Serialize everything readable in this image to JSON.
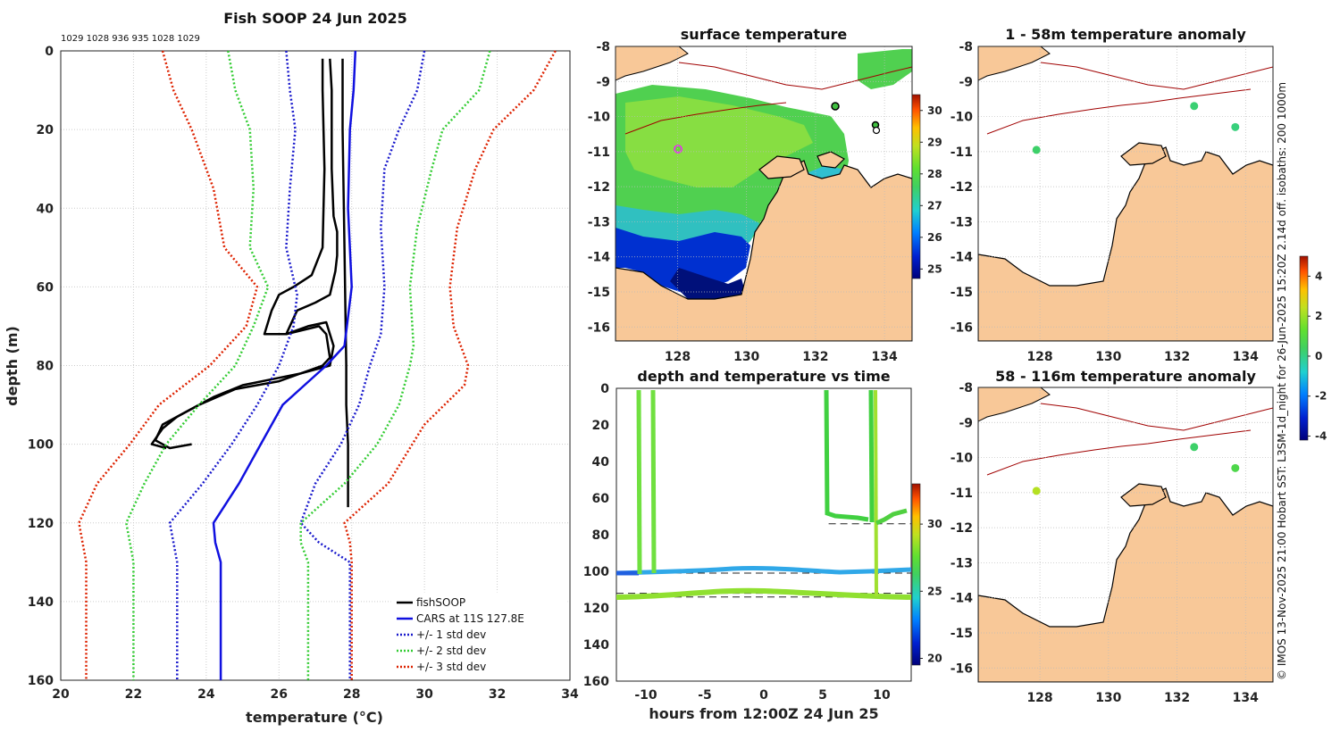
{
  "chart_data": [
    {
      "type": "line",
      "title": "Fish SOOP 24 Jun 2025",
      "subtitle": "1029 1028 936 935 1028 1029",
      "xlabel": "temperature (°C)",
      "ylabel": "depth (m)",
      "xlim": [
        20,
        34
      ],
      "ylim": [
        0,
        160
      ],
      "y_inverted": true,
      "xticks": [
        "20",
        "22",
        "24",
        "26",
        "28",
        "30",
        "32",
        "34"
      ],
      "yticks": [
        "0",
        "20",
        "40",
        "60",
        "80",
        "100",
        "120",
        "140",
        "160"
      ],
      "grid": true,
      "legend_position": "bottom-right",
      "legend": [
        "fishSOOP",
        "CARS at 11S 127.8E",
        "+/- 1 std dev",
        "+/- 2 std dev",
        "+/- 3 std dev"
      ],
      "colors": {
        "fishsoop": "#000000",
        "cars": "#1010e0",
        "std1": "#1a1acc",
        "std2": "#33cc33",
        "std3": "#dd2200"
      },
      "series": [
        {
          "name": "fishSOOP cast 1",
          "x": [
            27.2,
            27.2,
            27.25,
            27.2,
            26.9,
            26.4,
            26.0,
            25.8,
            25.6,
            26.2,
            26.8,
            27.3,
            27.5,
            27.4,
            26.6,
            25.0,
            24.2,
            23.4,
            22.8,
            22.6,
            23.0,
            23.6
          ],
          "y": [
            2,
            10,
            30,
            50,
            57,
            60,
            62,
            66,
            72,
            72,
            70,
            69,
            75,
            80,
            82,
            85,
            88,
            92,
            95,
            99,
            101,
            100
          ]
        },
        {
          "name": "fishSOOP cast 2",
          "x": [
            27.4,
            27.45,
            27.45,
            27.5,
            27.6,
            27.6,
            27.55,
            27.4,
            27.0,
            26.5,
            26.2,
            27.1,
            27.3,
            27.4,
            27.2,
            26.0,
            24.8,
            23.8,
            23.2,
            22.8,
            22.5,
            22.9
          ],
          "y": [
            2,
            10,
            30,
            42,
            46,
            52,
            56,
            62,
            64,
            66,
            72,
            70,
            72,
            78,
            80,
            84,
            86,
            90,
            93,
            96,
            100,
            101
          ]
        },
        {
          "name": "fishSOOP cast 3",
          "x": [
            27.75,
            27.75,
            27.8,
            27.85,
            27.85,
            27.9,
            27.9,
            27.9
          ],
          "y": [
            2,
            20,
            50,
            80,
            90,
            100,
            110,
            116
          ]
        },
        {
          "name": "CARS at 11S 127.8E",
          "x": [
            28.1,
            28.05,
            27.95,
            27.9,
            28.0,
            27.8,
            27.3,
            26.7,
            26.1,
            25.5,
            24.9,
            24.2,
            24.25,
            24.4,
            24.4,
            24.4
          ],
          "y": [
            0,
            10,
            20,
            40,
            60,
            75,
            80,
            85,
            90,
            100,
            110,
            120,
            125,
            130,
            140,
            160
          ]
        },
        {
          "name": "+1 std dev",
          "x": [
            30.0,
            29.8,
            29.3,
            28.9,
            28.8,
            28.9,
            28.8,
            28.5,
            28.2,
            27.7,
            27.0,
            26.6,
            27.1,
            27.95,
            27.95,
            27.95
          ],
          "y": [
            0,
            10,
            20,
            30,
            45,
            60,
            72,
            80,
            90,
            100,
            110,
            120,
            125,
            130,
            140,
            160
          ]
        },
        {
          "name": "-1 std dev",
          "x": [
            26.2,
            26.3,
            26.45,
            26.3,
            26.2,
            26.5,
            26.4,
            26.0,
            25.4,
            24.7,
            23.9,
            23.0,
            23.1,
            23.2,
            23.2,
            23.2
          ],
          "y": [
            0,
            10,
            20,
            35,
            50,
            62,
            70,
            80,
            90,
            100,
            110,
            120,
            125,
            130,
            140,
            160
          ]
        },
        {
          "name": "+2 std dev",
          "x": [
            31.8,
            31.5,
            30.5,
            30.2,
            29.8,
            29.6,
            29.7,
            29.6,
            29.3,
            28.7,
            27.8,
            26.6,
            26.6,
            26.8,
            26.8,
            26.8
          ],
          "y": [
            0,
            10,
            20,
            30,
            45,
            60,
            75,
            80,
            90,
            100,
            110,
            120,
            125,
            130,
            140,
            160
          ]
        },
        {
          "name": "-2 std dev",
          "x": [
            24.6,
            24.8,
            25.2,
            25.3,
            25.2,
            25.7,
            25.3,
            24.8,
            23.8,
            22.9,
            22.3,
            21.8,
            21.9,
            22.0,
            22.0,
            22.0
          ],
          "y": [
            0,
            10,
            20,
            35,
            50,
            60,
            70,
            80,
            90,
            100,
            110,
            120,
            125,
            130,
            140,
            160
          ]
        },
        {
          "name": "+3 std dev",
          "x": [
            33.6,
            33.0,
            31.9,
            31.4,
            30.9,
            30.7,
            30.8,
            31.2,
            31.1,
            30.0,
            29.0,
            27.8,
            27.95,
            28.0,
            28.0,
            28.0
          ],
          "y": [
            0,
            10,
            20,
            30,
            45,
            60,
            70,
            80,
            85,
            95,
            110,
            120,
            125,
            130,
            140,
            160
          ]
        },
        {
          "name": "-3 std dev",
          "x": [
            22.8,
            23.1,
            23.6,
            24.2,
            24.5,
            25.4,
            25.1,
            24.1,
            22.7,
            21.9,
            21.0,
            20.5,
            20.6,
            20.7,
            20.7,
            20.7
          ],
          "y": [
            0,
            10,
            20,
            35,
            50,
            60,
            70,
            80,
            90,
            100,
            110,
            120,
            125,
            130,
            140,
            160
          ]
        }
      ]
    },
    {
      "type": "heatmap",
      "title": "surface temperature",
      "xticks": [
        "128",
        "130",
        "132",
        "134"
      ],
      "yticks": [
        "-8",
        "-9",
        "-10",
        "-11",
        "-12",
        "-13",
        "-14",
        "-15",
        "-16"
      ],
      "xlim": [
        126.2,
        134.8
      ],
      "ylim": [
        -16.4,
        -8
      ],
      "colorbar": {
        "ticks": [
          "25",
          "26",
          "27",
          "28",
          "29",
          "30"
        ],
        "range": [
          24.7,
          30.5
        ]
      }
    },
    {
      "type": "heatmap",
      "title": "1 - 58m temperature anomaly",
      "xticks": [
        "128",
        "130",
        "132",
        "134"
      ],
      "yticks": [
        "-8",
        "-9",
        "-10",
        "-11",
        "-12",
        "-13",
        "-14",
        "-15",
        "-16"
      ],
      "xlim": [
        126.2,
        134.8
      ],
      "ylim": [
        -16.4,
        -8
      ],
      "points": [
        {
          "lon": 127.9,
          "lat": -10.95,
          "anomaly": 0.3
        },
        {
          "lon": 132.5,
          "lat": -9.7,
          "anomaly": 0.2
        },
        {
          "lon": 133.7,
          "lat": -10.3,
          "anomaly": 0.1
        }
      ]
    },
    {
      "type": "heatmap",
      "title": "58 - 116m temperature anomaly",
      "xticks": [
        "128",
        "130",
        "132",
        "134"
      ],
      "yticks": [
        "-8",
        "-9",
        "-10",
        "-11",
        "-12",
        "-13",
        "-14",
        "-15",
        "-16"
      ],
      "xlim": [
        126.2,
        134.8
      ],
      "ylim": [
        -16.4,
        -8
      ],
      "points": [
        {
          "lon": 127.9,
          "lat": -10.95,
          "anomaly": 2.3
        },
        {
          "lon": 132.5,
          "lat": -9.7,
          "anomaly": 0.3
        },
        {
          "lon": 133.7,
          "lat": -10.3,
          "anomaly": 0.8
        }
      ],
      "colorbar": {
        "ticks": [
          "-4",
          "-2",
          "0",
          "2",
          "4"
        ],
        "range": [
          -4.2,
          5
        ]
      }
    },
    {
      "type": "scatter",
      "title": "depth and temperature vs time",
      "xlabel": "hours from 12:00Z 24 Jun 25",
      "xlim": [
        -12.5,
        12.5
      ],
      "ylim": [
        0,
        160
      ],
      "y_inverted": true,
      "xticks": [
        "-10",
        "-5",
        "0",
        "5",
        "10"
      ],
      "yticks": [
        "0",
        "20",
        "40",
        "60",
        "80",
        "100",
        "120",
        "140",
        "160"
      ],
      "colorbar": {
        "ticks": [
          "20",
          "25",
          "30"
        ],
        "range": [
          19.5,
          33
        ]
      },
      "dashed_lines_depth": [
        74,
        101,
        112,
        114
      ]
    }
  ],
  "side_text": "© IMOS 13-Nov-2025 21:00 Hobart SST: L3SM-1d_night for 26-Jun-2025 15:20Z 2.14d off. isobaths: 200  1000m"
}
